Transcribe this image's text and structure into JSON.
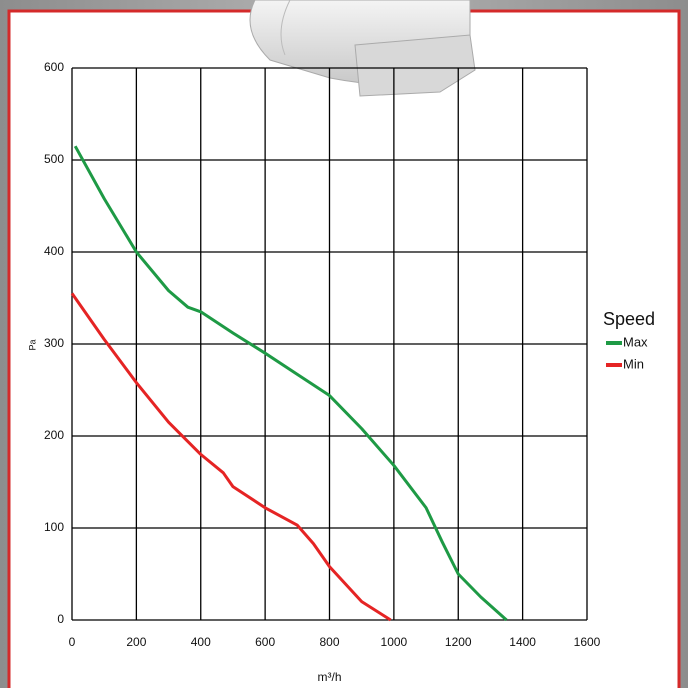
{
  "chart_data": {
    "type": "line",
    "xlabel": "m³/h",
    "ylabel": "Pa",
    "legend_title": "Speed",
    "legend": "right",
    "xlim": [
      0,
      1600
    ],
    "xticks": [
      0,
      200,
      400,
      600,
      800,
      1000,
      1200,
      1400,
      1600
    ],
    "ylim": [
      0,
      600
    ],
    "yticks": [
      0,
      100,
      200,
      300,
      400,
      500,
      600
    ],
    "grid": true,
    "series": [
      {
        "name": "Max",
        "color": "#1e9a45",
        "x": [
          10,
          100,
          200,
          300,
          360,
          400,
          500,
          600,
          700,
          800,
          900,
          1000,
          1100,
          1150,
          1200,
          1270,
          1350
        ],
        "values": [
          515,
          458,
          400,
          358,
          340,
          335,
          312,
          290,
          267,
          244,
          208,
          168,
          122,
          85,
          50,
          25,
          0
        ]
      },
      {
        "name": "Min",
        "color": "#e52424",
        "x": [
          0,
          100,
          200,
          300,
          400,
          470,
          500,
          600,
          700,
          750,
          800,
          900,
          990
        ],
        "values": [
          355,
          305,
          258,
          215,
          180,
          160,
          145,
          122,
          103,
          83,
          58,
          20,
          0
        ]
      }
    ]
  }
}
